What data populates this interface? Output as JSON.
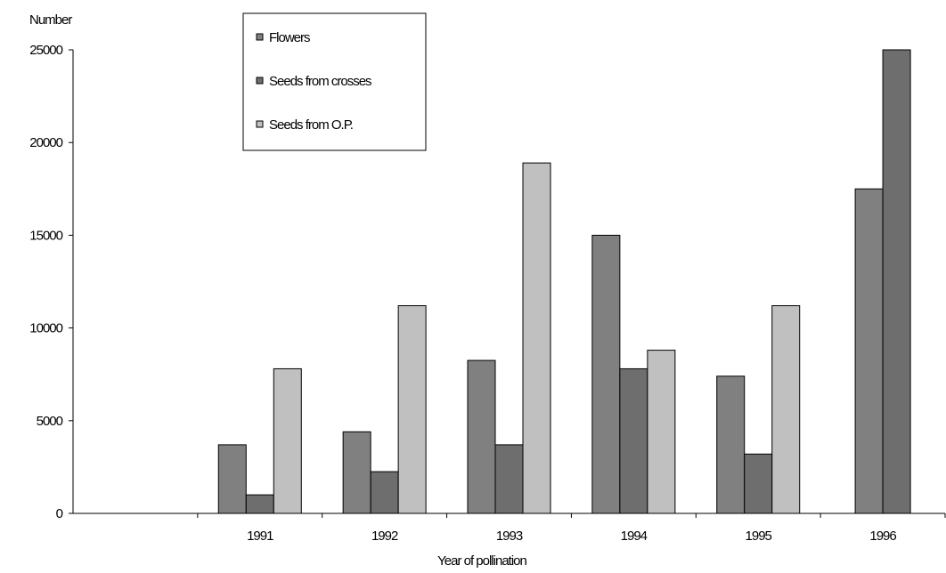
{
  "chart_data": {
    "type": "bar",
    "ylabel": "Number",
    "xlabel": "Year of pollination",
    "categories": [
      "",
      "1991",
      "1992",
      "1993",
      "1994",
      "1995",
      "1996"
    ],
    "ylim": [
      0,
      25000
    ],
    "yticks": [
      0,
      5000,
      10000,
      15000,
      20000,
      25000
    ],
    "grid": false,
    "legend_position": "top-center",
    "series": [
      {
        "name": "Flowers",
        "color": "#808080",
        "values": [
          null,
          3700,
          4400,
          8250,
          15000,
          7400,
          17500
        ]
      },
      {
        "name": "Seeds from crosses",
        "color": "#6e6e6e",
        "values": [
          null,
          1000,
          2250,
          3700,
          7800,
          3200,
          25000
        ]
      },
      {
        "name": "Seeds from O.P.",
        "color": "#c0c0c0",
        "values": [
          null,
          7800,
          11200,
          18900,
          8800,
          11200,
          null
        ]
      }
    ]
  }
}
